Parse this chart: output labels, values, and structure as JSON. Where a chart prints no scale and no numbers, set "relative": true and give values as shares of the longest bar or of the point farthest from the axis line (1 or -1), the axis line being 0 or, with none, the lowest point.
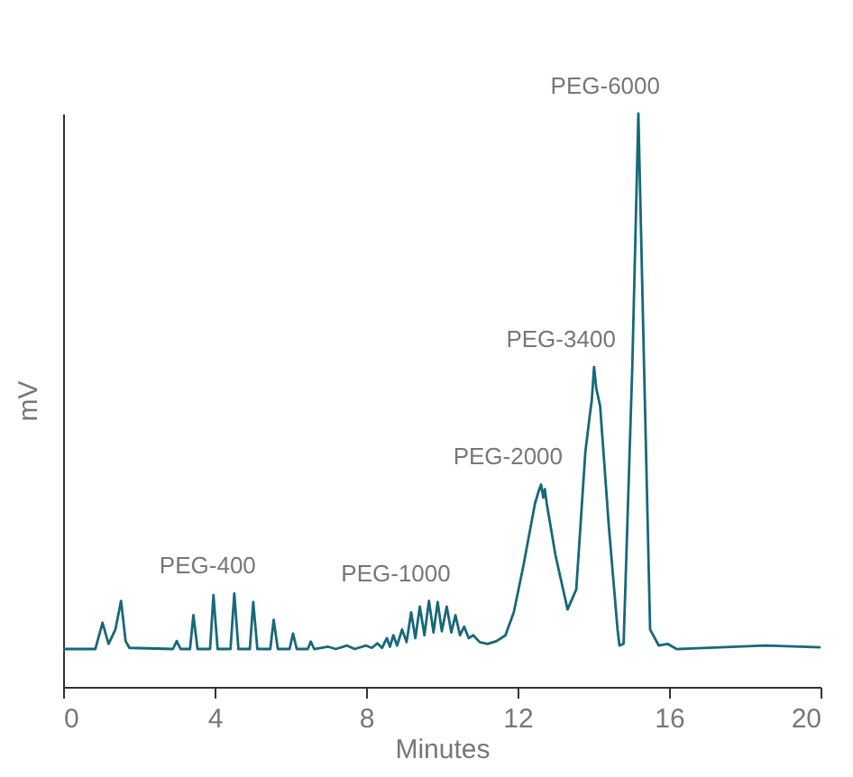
{
  "chart_data": {
    "type": "line",
    "relative": true,
    "xlabel": "Minutes",
    "ylabel": "mV",
    "xlim": [
      0,
      20
    ],
    "xticks": [
      0,
      4,
      8,
      12,
      16,
      20
    ],
    "grid": false,
    "marker": "none",
    "line_style": "solid",
    "x": [
      0,
      0.85,
      1.04,
      1.2,
      1.38,
      1.53,
      1.65,
      1.75,
      2.9,
      3.0,
      3.1,
      3.35,
      3.44,
      3.55,
      3.88,
      3.97,
      4.08,
      4.42,
      4.52,
      4.63,
      4.93,
      5.02,
      5.13,
      5.47,
      5.56,
      5.67,
      5.98,
      6.07,
      6.17,
      6.46,
      6.54,
      6.63,
      7.0,
      7.2,
      7.5,
      7.7,
      8.0,
      8.15,
      8.3,
      8.42,
      8.55,
      8.63,
      8.72,
      8.82,
      8.95,
      9.07,
      9.19,
      9.3,
      9.42,
      9.54,
      9.66,
      9.78,
      9.89,
      10.0,
      10.13,
      10.25,
      10.36,
      10.48,
      10.59,
      10.71,
      10.83,
      11.0,
      11.21,
      11.45,
      11.68,
      11.9,
      12.15,
      12.46,
      12.55,
      12.62,
      12.68,
      12.72,
      12.77,
      13.0,
      13.32,
      13.55,
      13.79,
      13.9,
      13.96,
      14.02,
      14.08,
      14.18,
      14.41,
      14.64,
      14.69,
      14.8,
      15.03,
      15.19,
      15.34,
      15.5,
      15.73,
      15.96,
      16.2,
      18.54,
      20
    ],
    "series": [
      {
        "color": "#17687a",
        "values": [
          0.066,
          0.066,
          0.112,
          0.075,
          0.1,
          0.15,
          0.08,
          0.068,
          0.066,
          0.08,
          0.066,
          0.066,
          0.125,
          0.066,
          0.066,
          0.16,
          0.066,
          0.066,
          0.163,
          0.066,
          0.066,
          0.148,
          0.066,
          0.066,
          0.117,
          0.066,
          0.066,
          0.093,
          0.066,
          0.066,
          0.079,
          0.066,
          0.07,
          0.066,
          0.072,
          0.066,
          0.072,
          0.068,
          0.076,
          0.068,
          0.085,
          0.07,
          0.09,
          0.072,
          0.1,
          0.078,
          0.13,
          0.085,
          0.14,
          0.09,
          0.15,
          0.095,
          0.148,
          0.097,
          0.14,
          0.095,
          0.125,
          0.09,
          0.105,
          0.085,
          0.09,
          0.078,
          0.075,
          0.08,
          0.09,
          0.13,
          0.21,
          0.32,
          0.34,
          0.353,
          0.33,
          0.345,
          0.32,
          0.23,
          0.135,
          0.17,
          0.41,
          0.47,
          0.5,
          0.558,
          0.52,
          0.49,
          0.28,
          0.1,
          0.072,
          0.075,
          0.56,
          1.0,
          0.56,
          0.1,
          0.072,
          0.075,
          0.066,
          0.072,
          0.069
        ]
      }
    ],
    "annotations": [
      {
        "text": "PEG-400",
        "x": 4.52,
        "y": 0.163
      },
      {
        "text": "PEG-1000",
        "x": 9.66,
        "y": 0.15
      },
      {
        "text": "PEG-2000",
        "x": 12.62,
        "y": 0.353
      },
      {
        "text": "PEG-3400",
        "x": 14.02,
        "y": 0.558
      },
      {
        "text": "PEG-6000",
        "x": 15.19,
        "y": 1.0
      }
    ]
  }
}
